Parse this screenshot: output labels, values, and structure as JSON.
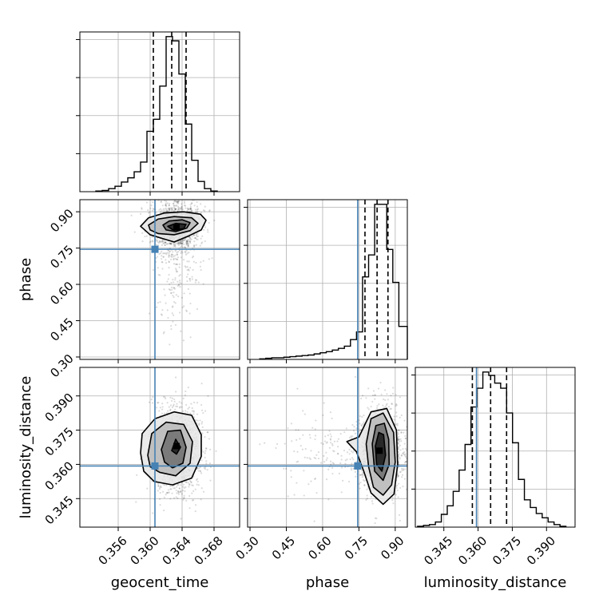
{
  "chart_data": {
    "type": "corner",
    "parameters": [
      "geocent_time",
      "phase",
      "luminosity_distance"
    ],
    "axis_labels": {
      "geocent_time": "geocent_time",
      "phase": "phase",
      "luminosity_distance": "luminosity_distance"
    },
    "ranges": {
      "geocent_time": [
        0.3512,
        0.3712
      ],
      "phase": [
        0.29,
        0.95
      ],
      "luminosity_distance": [
        0.3325,
        0.4025
      ]
    },
    "ticks": {
      "geocent_time": [
        "0.356",
        "0.360",
        "0.364",
        "0.368"
      ],
      "phase": [
        "0.30",
        "0.45",
        "0.60",
        "0.75",
        "0.90"
      ],
      "luminosity_distance": [
        "0.345",
        "0.360",
        "0.375",
        "0.390"
      ]
    },
    "truths": {
      "geocent_time": 0.3606,
      "phase": 0.745,
      "luminosity_distance": 0.3593
    },
    "quantiles": {
      "geocent_time": [
        0.3604,
        0.3627,
        0.3645
      ],
      "phase": [
        0.775,
        0.825,
        0.87
      ],
      "luminosity_distance": [
        0.3575,
        0.3655,
        0.3725
      ]
    },
    "histograms": {
      "geocent_time": {
        "edges": [
          0.3532,
          0.354,
          0.3548,
          0.3556,
          0.3564,
          0.3572,
          0.358,
          0.3588,
          0.3596,
          0.3604,
          0.3612,
          0.362,
          0.3628,
          0.3636,
          0.3644,
          0.3652,
          0.366,
          0.3668,
          0.3676,
          0.3684
        ],
        "counts": [
          1,
          2,
          5,
          9,
          16,
          23,
          33,
          49,
          100,
          120,
          175,
          257,
          250,
          195,
          112,
          52,
          17,
          5,
          1
        ]
      },
      "phase": {
        "edges": [
          0.34,
          0.365,
          0.39,
          0.415,
          0.44,
          0.465,
          0.49,
          0.515,
          0.54,
          0.565,
          0.59,
          0.615,
          0.64,
          0.665,
          0.69,
          0.715,
          0.74,
          0.765,
          0.79,
          0.815,
          0.84,
          0.865,
          0.89,
          0.915,
          0.95
        ],
        "counts": [
          1,
          2,
          3,
          3,
          4,
          5,
          6,
          7,
          8,
          10,
          12,
          14,
          17,
          20,
          24,
          36,
          50,
          150,
          190,
          282,
          282,
          200,
          140,
          60
        ]
      },
      "luminosity_distance": {
        "edges": [
          0.3335,
          0.3361,
          0.3387,
          0.3413,
          0.3439,
          0.3465,
          0.3491,
          0.3517,
          0.3543,
          0.3569,
          0.3595,
          0.3621,
          0.3647,
          0.3673,
          0.3699,
          0.3725,
          0.3751,
          0.3777,
          0.3803,
          0.3829,
          0.3855,
          0.3881,
          0.3907,
          0.3933,
          0.3959,
          0.3985
        ],
        "counts": [
          1,
          2,
          3,
          6,
          15,
          25,
          42,
          67,
          97,
          141,
          163,
          182,
          178,
          169,
          163,
          134,
          99,
          56,
          32,
          23,
          16,
          11,
          6,
          3,
          1
        ]
      }
    },
    "contours": {
      "phase_vs_geocent_time": {
        "density_peak": [
          0.3633,
          0.835
        ],
        "levels": [
          [
            [
              0.3588,
              0.84
            ],
            [
              0.3598,
              0.875
            ],
            [
              0.3618,
              0.895
            ],
            [
              0.3642,
              0.9
            ],
            [
              0.3663,
              0.89
            ],
            [
              0.367,
              0.865
            ],
            [
              0.3664,
              0.825
            ],
            [
              0.3648,
              0.8
            ],
            [
              0.363,
              0.775
            ],
            [
              0.3615,
              0.79
            ],
            [
              0.36,
              0.805
            ]
          ],
          [
            [
              0.3598,
              0.845
            ],
            [
              0.361,
              0.87
            ],
            [
              0.363,
              0.88
            ],
            [
              0.3652,
              0.875
            ],
            [
              0.366,
              0.852
            ],
            [
              0.365,
              0.822
            ],
            [
              0.363,
              0.805
            ],
            [
              0.361,
              0.81
            ],
            [
              0.36,
              0.825
            ]
          ],
          [
            [
              0.3616,
              0.845
            ],
            [
              0.3624,
              0.862
            ],
            [
              0.364,
              0.867
            ],
            [
              0.365,
              0.855
            ],
            [
              0.3646,
              0.833
            ],
            [
              0.3632,
              0.818
            ],
            [
              0.362,
              0.825
            ]
          ],
          [
            [
              0.3622,
              0.84
            ],
            [
              0.3632,
              0.852
            ],
            [
              0.3645,
              0.848
            ],
            [
              0.3642,
              0.83
            ],
            [
              0.3628,
              0.826
            ]
          ]
        ]
      },
      "luminosity_distance_vs_geocent_time": {
        "density_peak": [
          0.3633,
          0.368
        ],
        "levels": [
          [
            [
              0.3588,
              0.365
            ],
            [
              0.359,
              0.3735
            ],
            [
              0.3606,
              0.38
            ],
            [
              0.363,
              0.383
            ],
            [
              0.3652,
              0.3815
            ],
            [
              0.3664,
              0.373
            ],
            [
              0.3664,
              0.3635
            ],
            [
              0.3652,
              0.354
            ],
            [
              0.3628,
              0.351
            ],
            [
              0.3605,
              0.3525
            ],
            [
              0.3592,
              0.357
            ]
          ],
          [
            [
              0.3597,
              0.364
            ],
            [
              0.3602,
              0.3735
            ],
            [
              0.362,
              0.3785
            ],
            [
              0.3642,
              0.3775
            ],
            [
              0.3653,
              0.37
            ],
            [
              0.365,
              0.3605
            ],
            [
              0.3632,
              0.355
            ],
            [
              0.3612,
              0.3565
            ],
            [
              0.36,
              0.359
            ]
          ],
          [
            [
              0.3614,
              0.3665
            ],
            [
              0.3622,
              0.3745
            ],
            [
              0.3638,
              0.375
            ],
            [
              0.3645,
              0.3675
            ],
            [
              0.3641,
              0.3605
            ],
            [
              0.3628,
              0.3585
            ],
            [
              0.3618,
              0.361
            ]
          ],
          [
            [
              0.3627,
              0.366
            ],
            [
              0.3632,
              0.371
            ],
            [
              0.3638,
              0.3675
            ],
            [
              0.3633,
              0.3645
            ]
          ]
        ]
      },
      "luminosity_distance_vs_phase": {
        "density_peak": [
          0.835,
          0.366
        ],
        "levels": [
          [
            [
              0.75,
              0.372
            ],
            [
              0.8,
              0.383
            ],
            [
              0.865,
              0.3845
            ],
            [
              0.905,
              0.375
            ],
            [
              0.91,
              0.36
            ],
            [
              0.895,
              0.347
            ],
            [
              0.85,
              0.3425
            ],
            [
              0.8,
              0.3475
            ],
            [
              0.77,
              0.357
            ],
            [
              0.74,
              0.3655
            ],
            [
              0.7,
              0.37
            ]
          ],
          [
            [
              0.78,
              0.369
            ],
            [
              0.8,
              0.38
            ],
            [
              0.85,
              0.3825
            ],
            [
              0.893,
              0.374
            ],
            [
              0.9,
              0.361
            ],
            [
              0.885,
              0.351
            ],
            [
              0.85,
              0.3465
            ],
            [
              0.81,
              0.35
            ],
            [
              0.79,
              0.359
            ]
          ],
          [
            [
              0.805,
              0.369
            ],
            [
              0.82,
              0.377
            ],
            [
              0.855,
              0.378
            ],
            [
              0.873,
              0.371
            ],
            [
              0.875,
              0.36
            ],
            [
              0.85,
              0.353
            ],
            [
              0.815,
              0.357
            ]
          ],
          [
            [
              0.818,
              0.368
            ],
            [
              0.832,
              0.374
            ],
            [
              0.852,
              0.373
            ],
            [
              0.86,
              0.364
            ],
            [
              0.845,
              0.357
            ],
            [
              0.823,
              0.36
            ]
          ]
        ]
      }
    }
  }
}
